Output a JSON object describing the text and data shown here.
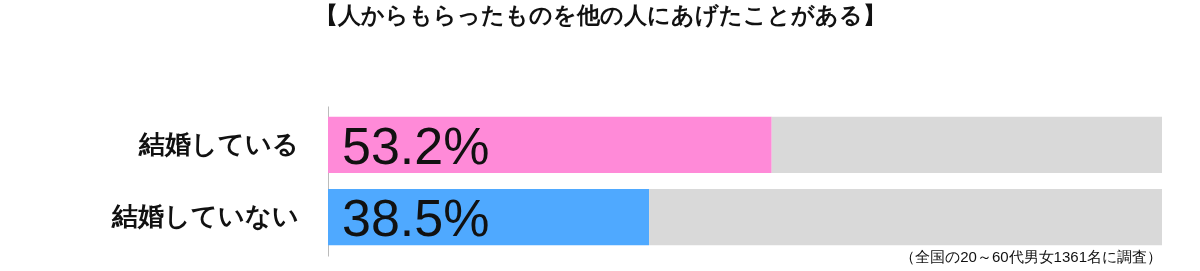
{
  "chart_data": {
    "type": "bar",
    "orientation": "horizontal",
    "stacked": true,
    "title": "【人からもらったものを他の人にあげたことがある】",
    "categories": [
      "結婚している",
      "結婚していない"
    ],
    "series": [
      {
        "colors": [
          "#ff8ad8",
          "#4fa9ff"
        ],
        "values": [
          53.2,
          38.5
        ],
        "value_labels": [
          "53.2%",
          "38.5%"
        ]
      },
      {
        "color": "#d9d9d9",
        "values": [
          46.8,
          61.5
        ]
      }
    ],
    "xlim": [
      0,
      100
    ],
    "tick_labels": "y",
    "annotations": [
      "（全国の20～60代男女1361名に調査）"
    ]
  }
}
